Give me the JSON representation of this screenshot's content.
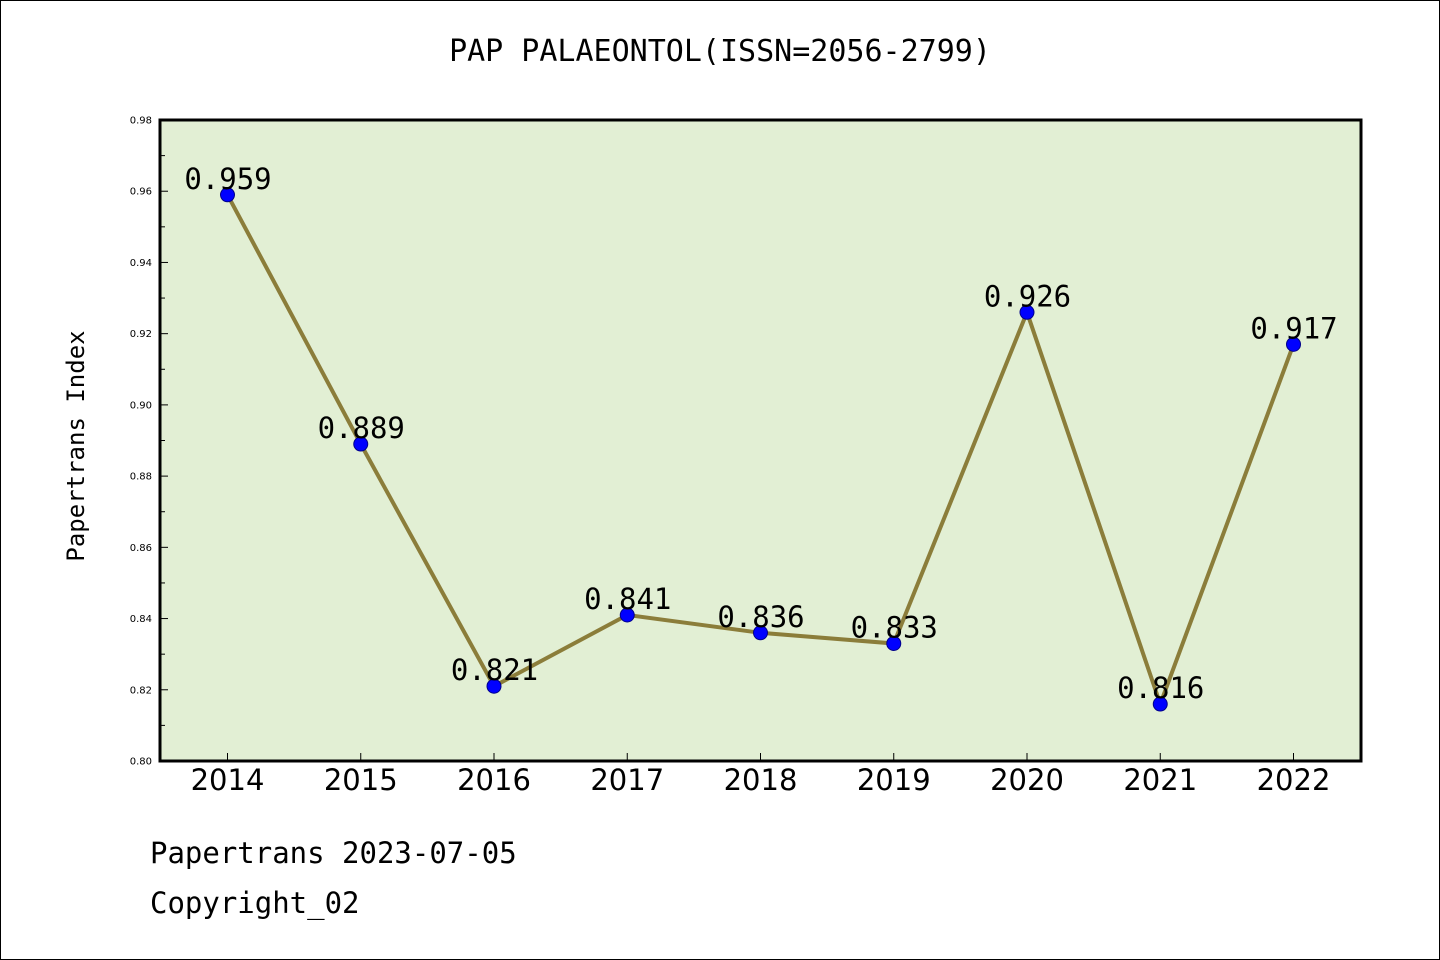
{
  "page": {
    "title": "PAP PALAEONTOL(ISSN=2056-2799)",
    "footer": {
      "date_line": "Papertrans 2023-07-05",
      "copyright_line": "Copyright_02"
    }
  },
  "chart_data": {
    "type": "line",
    "title": "PAP PALAEONTOL(ISSN=2056-2799)",
    "xlabel": "",
    "ylabel": "Papertrans Index",
    "categories": [
      "2014",
      "2015",
      "2016",
      "2017",
      "2018",
      "2019",
      "2020",
      "2021",
      "2022"
    ],
    "series": [
      {
        "values": [
          0.959,
          0.889,
          0.821,
          0.841,
          0.836,
          0.833,
          0.926,
          0.816,
          0.917
        ],
        "value_labels": [
          "0.959",
          "0.889",
          "0.821",
          "0.841",
          "0.836",
          "0.833",
          "0.926",
          "0.816",
          "0.917"
        ],
        "line_color": "#8b7d3a",
        "marker_color": "#0000ff"
      }
    ],
    "ylim": [
      0.8,
      0.98
    ],
    "yticks": [
      "0.80",
      "0.82",
      "0.84",
      "0.86",
      "0.88",
      "0.90",
      "0.92",
      "0.94",
      "0.96",
      "0.98"
    ],
    "plot_background": "#e2efd4",
    "grid": false,
    "legend": "none"
  }
}
